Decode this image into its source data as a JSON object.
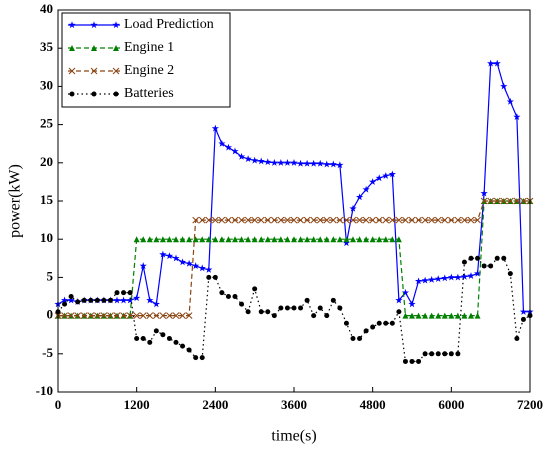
{
  "chart_data": {
    "type": "line",
    "xlabel": "time(s)",
    "ylabel": "power(kW)",
    "x": [
      0,
      100,
      200,
      300,
      400,
      500,
      600,
      700,
      800,
      900,
      1000,
      1100,
      1200,
      1300,
      1400,
      1500,
      1600,
      1700,
      1800,
      1900,
      2000,
      2100,
      2200,
      2300,
      2400,
      2500,
      2600,
      2700,
      2800,
      2900,
      3000,
      3100,
      3200,
      3300,
      3400,
      3500,
      3600,
      3700,
      3800,
      3900,
      4000,
      4100,
      4200,
      4300,
      4400,
      4500,
      4600,
      4700,
      4800,
      4900,
      5000,
      5100,
      5200,
      5300,
      5400,
      5500,
      5600,
      5700,
      5800,
      5900,
      6000,
      6100,
      6200,
      6300,
      6400,
      6500,
      6600,
      6700,
      6800,
      6900,
      7000,
      7100,
      7200
    ],
    "series": [
      {
        "name": "Load Prediction",
        "color": "#0000ff",
        "linestyle": "solid",
        "marker": "star",
        "values": [
          1.5,
          2,
          2,
          1.8,
          2,
          2,
          2,
          2,
          2,
          2,
          2,
          2,
          2.3,
          6.5,
          2,
          1.5,
          8,
          7.8,
          7.5,
          7,
          6.8,
          6.5,
          6.2,
          6,
          24.5,
          22.5,
          22,
          21.5,
          20.8,
          20.5,
          20.3,
          20.2,
          20.1,
          20,
          20,
          20,
          20,
          19.9,
          19.9,
          19.9,
          19.9,
          19.8,
          19.8,
          19.7,
          9.5,
          14,
          15.5,
          16.5,
          17.5,
          18,
          18.3,
          18.5,
          2,
          3,
          1.5,
          4.5,
          4.6,
          4.7,
          4.8,
          4.9,
          5,
          5,
          5.1,
          5.2,
          5.5,
          16,
          33,
          33,
          30,
          28,
          26,
          0.5,
          0.5
        ]
      },
      {
        "name": "Engine 1",
        "color": "#008000",
        "linestyle": "dashed",
        "marker": "triangle",
        "values": [
          0,
          0,
          0,
          0,
          0,
          0,
          0,
          0,
          0,
          0,
          0,
          0,
          10,
          10,
          10,
          10,
          10,
          10,
          10,
          10,
          10,
          10,
          10,
          10,
          10,
          10,
          10,
          10,
          10,
          10,
          10,
          10,
          10,
          10,
          10,
          10,
          10,
          10,
          10,
          10,
          10,
          10,
          10,
          10,
          10,
          10,
          10,
          10,
          10,
          10,
          10,
          10,
          10,
          0,
          0,
          0,
          0,
          0,
          0,
          0,
          0,
          0,
          0,
          0,
          0,
          15,
          15,
          15,
          15,
          15,
          15,
          15,
          15
        ]
      },
      {
        "name": "Engine 2",
        "color": "#8b4513",
        "linestyle": "dashed",
        "marker": "x",
        "values": [
          0,
          0,
          0,
          0,
          0,
          0,
          0,
          0,
          0,
          0,
          0,
          0,
          0,
          0,
          0,
          0,
          0,
          0,
          0,
          0,
          0,
          12.5,
          12.5,
          12.5,
          12.5,
          12.5,
          12.5,
          12.5,
          12.5,
          12.5,
          12.5,
          12.5,
          12.5,
          12.5,
          12.5,
          12.5,
          12.5,
          12.5,
          12.5,
          12.5,
          12.5,
          12.5,
          12.5,
          12.5,
          12.5,
          12.5,
          12.5,
          12.5,
          12.5,
          12.5,
          12.5,
          12.5,
          12.5,
          12.5,
          12.5,
          12.5,
          12.5,
          12.5,
          12.5,
          12.5,
          12.5,
          12.5,
          12.5,
          12.5,
          12.5,
          15,
          15,
          15,
          15,
          15,
          15,
          15,
          15
        ]
      },
      {
        "name": "Batteries",
        "color": "#000000",
        "linestyle": "dotted",
        "marker": "circle",
        "values": [
          0.5,
          1.5,
          2.5,
          1.8,
          2,
          2,
          2,
          2,
          2,
          3,
          3,
          3,
          -3,
          -3,
          -3.5,
          -2,
          -2.5,
          -3,
          -3.5,
          -4,
          -4.5,
          -5.5,
          -5.5,
          5,
          5,
          3,
          2.5,
          2.5,
          1.5,
          0.5,
          3.5,
          0.5,
          0.5,
          0,
          1,
          1,
          1,
          1,
          2,
          0,
          1,
          0,
          2,
          1,
          -1,
          -3,
          -3,
          -2,
          -1.5,
          -1,
          -1,
          -1,
          0.5,
          -6,
          -6,
          -6,
          -5,
          -5,
          -5,
          -5,
          -5,
          -5,
          7,
          7.5,
          7.5,
          6.5,
          6.5,
          7.5,
          7.5,
          5.5,
          -3,
          -0.5,
          0
        ]
      }
    ],
    "xlim": [
      0,
      7200
    ],
    "xticks": [
      0,
      1200,
      2400,
      3600,
      4800,
      6000,
      7200
    ],
    "ylim": [
      -10,
      40
    ],
    "yticks": [
      -10,
      -5,
      0,
      5,
      10,
      15,
      20,
      25,
      30,
      35,
      40
    ],
    "legend": "upper left"
  }
}
